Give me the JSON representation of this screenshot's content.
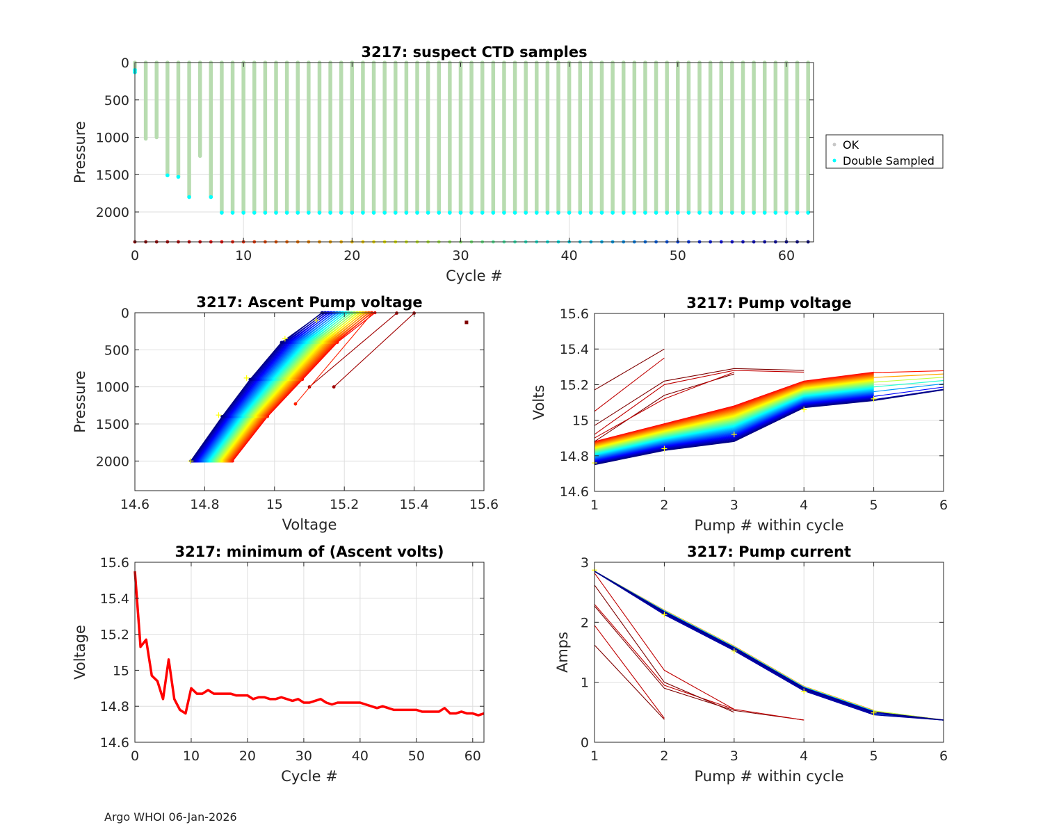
{
  "footer": "Argo WHOI 06-Jan-2026",
  "colors": {
    "ok": "#b8dcb0",
    "double": "#00ffff",
    "red": "#ff0000",
    "axis": "#262626",
    "grid": "#dedede"
  },
  "chart_data": [
    {
      "id": "suspect",
      "type": "scatter",
      "title": "3217: suspect CTD samples",
      "xlabel": "Cycle #",
      "ylabel": "Pressure",
      "xlim": [
        0,
        62.5
      ],
      "ylim": [
        2400,
        0
      ],
      "xticks": [
        0,
        10,
        20,
        30,
        40,
        50,
        60
      ],
      "yticks": [
        0,
        500,
        1000,
        1500,
        2000
      ],
      "legend": {
        "position": "outside-right",
        "entries": [
          "OK",
          "Double Sampled"
        ]
      },
      "cycles": [
        0,
        1,
        2,
        3,
        4,
        5,
        6,
        7,
        8,
        9,
        10,
        11,
        12,
        13,
        14,
        15,
        16,
        17,
        18,
        19,
        20,
        21,
        22,
        23,
        24,
        25,
        26,
        27,
        28,
        29,
        30,
        31,
        32,
        33,
        34,
        35,
        36,
        37,
        38,
        39,
        40,
        41,
        42,
        43,
        44,
        45,
        46,
        47,
        48,
        49,
        50,
        51,
        52,
        53,
        54,
        55,
        56,
        57,
        58,
        59,
        60,
        61,
        62
      ],
      "max_pressure": [
        130,
        1020,
        1000,
        1510,
        1530,
        1800,
        1250,
        1800,
        2010,
        2010,
        2010,
        2010,
        2010,
        2010,
        2010,
        2010,
        2010,
        2010,
        2010,
        2010,
        2010,
        2010,
        2010,
        2010,
        2010,
        2010,
        2010,
        2010,
        2010,
        2010,
        2010,
        2010,
        2010,
        2010,
        2010,
        2010,
        2010,
        2010,
        2010,
        2010,
        2010,
        2010,
        2010,
        2010,
        2010,
        2010,
        2010,
        2010,
        2010,
        2010,
        2010,
        2010,
        2010,
        2010,
        2010,
        2010,
        2010,
        2010,
        2010,
        2010,
        2010,
        2010,
        2010
      ],
      "double_sampled_pressure": [
        130,
        null,
        null,
        1510,
        1530,
        1800,
        null,
        1800,
        2010,
        2010,
        2010,
        2010,
        2010,
        2010,
        2010,
        2010,
        2010,
        2010,
        2010,
        2010,
        2010,
        2010,
        2010,
        2010,
        2010,
        2010,
        2010,
        2010,
        2010,
        2010,
        2010,
        2010,
        2010,
        2010,
        2010,
        2010,
        2010,
        2010,
        2010,
        2010,
        2010,
        2010,
        2010,
        2010,
        2010,
        2010,
        2010,
        2010,
        2010,
        2010,
        2010,
        2010,
        2010,
        2010,
        2010,
        2010,
        2010,
        2010,
        2010,
        2010,
        2010,
        2010,
        2010
      ],
      "cycle_marker_pressure": 2400
    },
    {
      "id": "ascent",
      "type": "line",
      "title": "3217: Ascent Pump voltage",
      "xlabel": "Voltage",
      "ylabel": "Pressure",
      "xlim": [
        14.6,
        15.6
      ],
      "ylim": [
        2400,
        0
      ],
      "xticks": [
        14.6,
        14.8,
        15,
        15.2,
        15.4,
        15.6
      ],
      "yticks": [
        0,
        500,
        1000,
        1500,
        2000
      ],
      "pressure_levels": [
        0,
        400,
        900,
        1400,
        2000
      ],
      "series_descriptor": "one line per cycle 0-62, colored jet by cycle; voltage at each pump pressure",
      "first_cycle_points": [
        [
          15.55,
          130
        ]
      ],
      "early_cycle_segments": [
        [
          [
            15.4,
            5
          ],
          [
            15.17,
            1000
          ]
        ],
        [
          [
            15.35,
            5
          ],
          [
            15.1,
            1000
          ]
        ],
        [
          [
            15.28,
            5
          ],
          [
            15.06,
            1230
          ]
        ]
      ]
    },
    {
      "id": "pumpvolts",
      "type": "line",
      "title": "3217: Pump voltage",
      "xlabel": "Pump # within cycle",
      "ylabel": "Volts",
      "xlim": [
        1,
        6
      ],
      "ylim": [
        14.6,
        15.6
      ],
      "xticks": [
        1,
        2,
        3,
        4,
        5,
        6
      ],
      "yticks": [
        14.6,
        14.8,
        15,
        15.2,
        15.4,
        15.6
      ],
      "yticklabels": [
        "14.6",
        "14.8",
        "15",
        "15.2",
        "15.4",
        "15.6"
      ],
      "early_cycles": [
        {
          "pumps": [
            1,
            2
          ],
          "volts": [
            15.17,
            15.4
          ]
        },
        {
          "pumps": [
            1,
            2
          ],
          "volts": [
            15.05,
            15.35
          ]
        },
        {
          "pumps": [
            1,
            2,
            3,
            4
          ],
          "volts": [
            14.97,
            15.22,
            15.29,
            15.28
          ]
        },
        {
          "pumps": [
            1,
            2,
            3,
            4
          ],
          "volts": [
            14.92,
            15.2,
            15.28,
            15.27
          ]
        },
        {
          "pumps": [
            1,
            2,
            3
          ],
          "volts": [
            14.88,
            15.14,
            15.26
          ]
        },
        {
          "pumps": [
            1,
            2,
            3
          ],
          "volts": [
            14.9,
            15.12,
            15.27
          ]
        }
      ],
      "late_start": [
        14.88,
        14.75
      ],
      "late_end_pump5": [
        15.27,
        15.11
      ],
      "late_end_pump6": [
        15.28,
        15.17
      ]
    },
    {
      "id": "minvolts",
      "type": "line",
      "title": "3217: minimum of (Ascent volts)",
      "xlabel": "Cycle #",
      "ylabel": "Voltage",
      "xlim": [
        0,
        62
      ],
      "ylim": [
        14.6,
        15.6
      ],
      "xticks": [
        0,
        10,
        20,
        30,
        40,
        50,
        60
      ],
      "yticks": [
        14.6,
        14.8,
        15,
        15.2,
        15.4,
        15.6
      ],
      "yticklabels": [
        "14.6",
        "14.8",
        "15",
        "15.2",
        "15.4",
        "15.6"
      ],
      "x": [
        0,
        1,
        2,
        3,
        4,
        5,
        6,
        7,
        8,
        9,
        10,
        11,
        12,
        13,
        14,
        15,
        16,
        17,
        18,
        19,
        20,
        21,
        22,
        23,
        24,
        25,
        26,
        27,
        28,
        29,
        30,
        31,
        32,
        33,
        34,
        35,
        36,
        37,
        38,
        39,
        40,
        41,
        42,
        43,
        44,
        45,
        46,
        47,
        48,
        49,
        50,
        51,
        52,
        53,
        54,
        55,
        56,
        57,
        58,
        59,
        60,
        61,
        62
      ],
      "y": [
        15.55,
        15.13,
        15.17,
        14.97,
        14.94,
        14.84,
        15.06,
        14.84,
        14.78,
        14.76,
        14.9,
        14.87,
        14.87,
        14.89,
        14.87,
        14.87,
        14.87,
        14.87,
        14.86,
        14.86,
        14.86,
        14.84,
        14.85,
        14.85,
        14.84,
        14.84,
        14.85,
        14.84,
        14.83,
        14.84,
        14.82,
        14.82,
        14.83,
        14.84,
        14.82,
        14.81,
        14.82,
        14.82,
        14.82,
        14.82,
        14.82,
        14.81,
        14.8,
        14.79,
        14.8,
        14.79,
        14.78,
        14.78,
        14.78,
        14.78,
        14.78,
        14.77,
        14.77,
        14.77,
        14.77,
        14.79,
        14.76,
        14.76,
        14.77,
        14.76,
        14.76,
        14.75,
        14.76
      ]
    },
    {
      "id": "pumpcurrent",
      "type": "line",
      "title": "3217: Pump current",
      "xlabel": "Pump # within cycle",
      "ylabel": "Amps",
      "xlim": [
        1,
        6
      ],
      "ylim": [
        0,
        3
      ],
      "xticks": [
        1,
        2,
        3,
        4,
        5,
        6
      ],
      "yticks": [
        0,
        1,
        2,
        3
      ],
      "early_cycles": [
        {
          "pumps": [
            1,
            2
          ],
          "amps": [
            1.62,
            0.38
          ]
        },
        {
          "pumps": [
            1,
            2
          ],
          "amps": [
            1.95,
            0.4
          ]
        },
        {
          "pumps": [
            1,
            2,
            3,
            4
          ],
          "amps": [
            2.27,
            0.9,
            0.53,
            0.37
          ]
        },
        {
          "pumps": [
            1,
            2,
            3,
            4
          ],
          "amps": [
            2.3,
            0.95,
            0.55,
            0.37
          ]
        },
        {
          "pumps": [
            1,
            2,
            3
          ],
          "amps": [
            2.62,
            1.0,
            0.5
          ]
        },
        {
          "pumps": [
            1,
            2,
            3
          ],
          "amps": [
            2.82,
            1.2,
            0.55
          ]
        }
      ],
      "late_profile": {
        "pumps": [
          1,
          2,
          3,
          4,
          5,
          6
        ],
        "amps": [
          2.85,
          2.15,
          1.55,
          0.88,
          0.48,
          0.37
        ]
      }
    }
  ]
}
